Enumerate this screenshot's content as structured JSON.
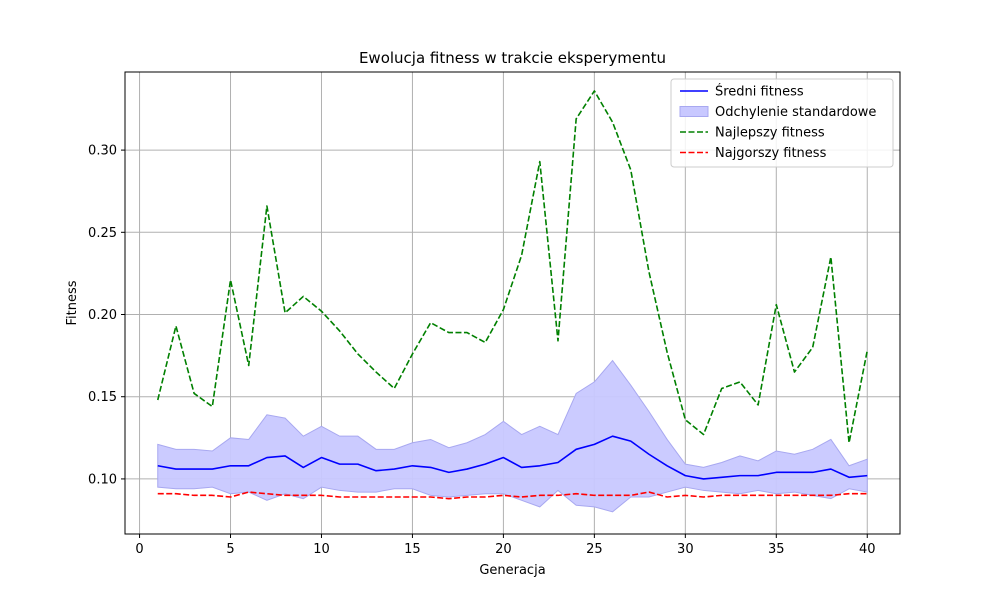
{
  "chart_data": {
    "type": "line",
    "title": "Ewolucja fitness w trakcie eksperymentu",
    "xlabel": "Generacja",
    "ylabel": "Fitness",
    "xlim": [
      -0.8,
      41.8
    ],
    "ylim": [
      0.0665,
      0.3475
    ],
    "xticks": [
      0,
      5,
      10,
      15,
      20,
      25,
      30,
      35,
      40
    ],
    "yticks": [
      0.1,
      0.15,
      0.2,
      0.25,
      0.3
    ],
    "ytick_labels": [
      "0.10",
      "0.15",
      "0.20",
      "0.25",
      "0.30"
    ],
    "grid": true,
    "legend_position": "top-right",
    "x": [
      1,
      2,
      3,
      4,
      5,
      6,
      7,
      8,
      9,
      10,
      11,
      12,
      13,
      14,
      15,
      16,
      17,
      18,
      19,
      20,
      21,
      22,
      23,
      24,
      25,
      26,
      27,
      28,
      29,
      30,
      31,
      32,
      33,
      34,
      35,
      36,
      37,
      38,
      39,
      40
    ],
    "series": [
      {
        "name": "Średni fitness",
        "style": "solid",
        "color": "#0000ff",
        "values": [
          0.108,
          0.106,
          0.106,
          0.106,
          0.108,
          0.108,
          0.113,
          0.114,
          0.107,
          0.113,
          0.109,
          0.109,
          0.105,
          0.106,
          0.108,
          0.107,
          0.104,
          0.106,
          0.109,
          0.113,
          0.107,
          0.108,
          0.11,
          0.118,
          0.121,
          0.126,
          0.123,
          0.115,
          0.108,
          0.102,
          0.1,
          0.101,
          0.102,
          0.102,
          0.104,
          0.104,
          0.104,
          0.106,
          0.101,
          0.102
        ]
      },
      {
        "name": "Odchylenie standardowe",
        "style": "band",
        "color": "#c8c8ff",
        "upper": [
          0.121,
          0.118,
          0.118,
          0.117,
          0.125,
          0.124,
          0.139,
          0.137,
          0.126,
          0.132,
          0.126,
          0.126,
          0.118,
          0.118,
          0.122,
          0.124,
          0.119,
          0.122,
          0.127,
          0.135,
          0.127,
          0.132,
          0.127,
          0.152,
          0.159,
          0.172,
          0.157,
          0.141,
          0.124,
          0.109,
          0.107,
          0.11,
          0.114,
          0.111,
          0.117,
          0.115,
          0.118,
          0.124,
          0.108,
          0.112
        ],
        "lower": [
          0.095,
          0.094,
          0.094,
          0.095,
          0.091,
          0.092,
          0.087,
          0.091,
          0.088,
          0.095,
          0.093,
          0.092,
          0.092,
          0.094,
          0.094,
          0.09,
          0.089,
          0.09,
          0.091,
          0.091,
          0.087,
          0.083,
          0.093,
          0.084,
          0.083,
          0.08,
          0.089,
          0.089,
          0.092,
          0.095,
          0.093,
          0.092,
          0.091,
          0.093,
          0.091,
          0.092,
          0.09,
          0.088,
          0.094,
          0.092
        ]
      },
      {
        "name": "Najlepszy fitness",
        "style": "dashed",
        "color": "#008000",
        "values": [
          0.148,
          0.193,
          0.152,
          0.144,
          0.221,
          0.169,
          0.266,
          0.201,
          0.211,
          0.202,
          0.19,
          0.176,
          0.165,
          0.155,
          0.176,
          0.195,
          0.189,
          0.189,
          0.183,
          0.203,
          0.236,
          0.293,
          0.184,
          0.319,
          0.336,
          0.317,
          0.288,
          0.226,
          0.177,
          0.136,
          0.127,
          0.155,
          0.159,
          0.145,
          0.206,
          0.165,
          0.18,
          0.235,
          0.122,
          0.178
        ]
      },
      {
        "name": "Najgorszy fitness",
        "style": "dashed",
        "color": "#ff0000",
        "values": [
          0.091,
          0.091,
          0.09,
          0.09,
          0.089,
          0.092,
          0.091,
          0.09,
          0.09,
          0.09,
          0.089,
          0.089,
          0.089,
          0.089,
          0.089,
          0.089,
          0.088,
          0.089,
          0.089,
          0.09,
          0.089,
          0.09,
          0.09,
          0.091,
          0.09,
          0.09,
          0.09,
          0.092,
          0.089,
          0.09,
          0.089,
          0.09,
          0.09,
          0.09,
          0.09,
          0.09,
          0.09,
          0.09,
          0.091,
          0.091
        ]
      }
    ],
    "legend_order": [
      "Średni fitness",
      "Odchylenie standardowe",
      "Najlepszy fitness",
      "Najgorszy fitness"
    ]
  }
}
